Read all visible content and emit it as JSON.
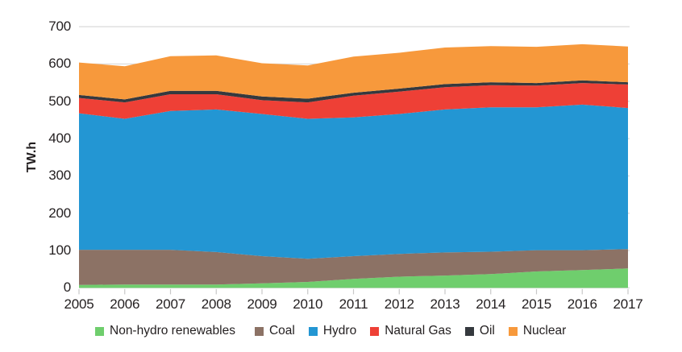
{
  "chart_data": {
    "type": "area",
    "stacked": true,
    "title": "",
    "xlabel": "",
    "ylabel": "TW.h",
    "ylim": [
      0,
      700
    ],
    "y_ticks": [
      0,
      100,
      200,
      300,
      400,
      500,
      600,
      700
    ],
    "grid": true,
    "legend_position": "bottom",
    "x": [
      2005,
      2006,
      2007,
      2008,
      2009,
      2010,
      2011,
      2012,
      2013,
      2014,
      2015,
      2016,
      2017
    ],
    "series": [
      {
        "name": "Non-hydro renewables",
        "color": "#6FCE6D",
        "values": [
          8,
          9,
          9,
          9,
          12,
          16,
          24,
          30,
          33,
          37,
          44,
          48,
          52
        ]
      },
      {
        "name": "Coal",
        "color": "#8C7265",
        "values": [
          94,
          93,
          93,
          87,
          73,
          62,
          61,
          61,
          62,
          60,
          57,
          53,
          52
        ]
      },
      {
        "name": "Hydro",
        "color": "#2396D3",
        "values": [
          366,
          351,
          372,
          382,
          381,
          375,
          372,
          375,
          383,
          387,
          383,
          390,
          378
        ]
      },
      {
        "name": "Natural Gas",
        "color": "#EE4036",
        "values": [
          41,
          44,
          45,
          41,
          37,
          44,
          58,
          60,
          60,
          59,
          58,
          58,
          63
        ]
      },
      {
        "name": "Oil",
        "color": "#35393E",
        "values": [
          8,
          8,
          9,
          9,
          10,
          10,
          8,
          8,
          8,
          8,
          7,
          7,
          6
        ]
      },
      {
        "name": "Nuclear",
        "color": "#F7993C",
        "values": [
          87,
          89,
          93,
          95,
          89,
          89,
          97,
          96,
          98,
          97,
          97,
          97,
          96
        ]
      }
    ],
    "totals": [
      604,
      594,
      621,
      623,
      602,
      596,
      620,
      630,
      644,
      648,
      646,
      653,
      647
    ]
  },
  "style_colors": {
    "gridline": "#DADADA",
    "tick": "#C8C8C8",
    "text": "#231F20",
    "background": "#FFFFFF"
  }
}
